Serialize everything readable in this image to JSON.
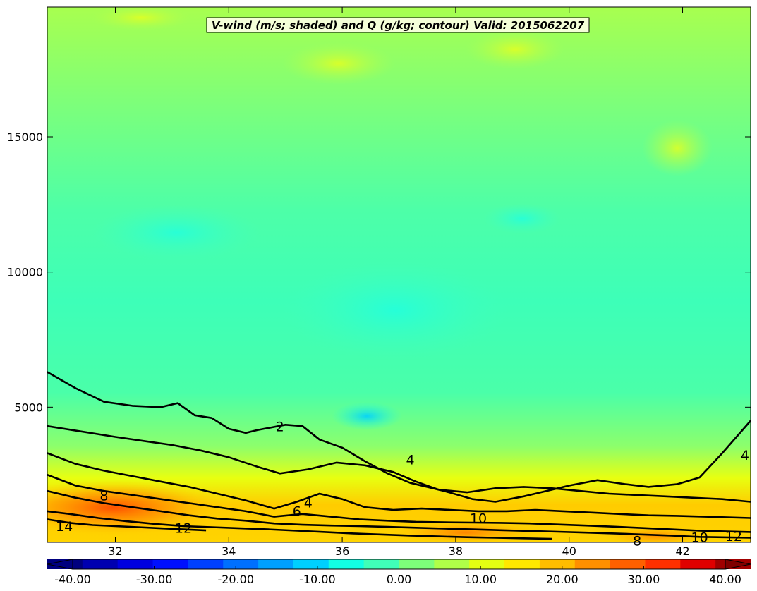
{
  "chart_data": {
    "type": "heatmap",
    "title": "V-wind (m/s; shaded) and Q (g/kg; contour) Valid: 2015062207",
    "x_ticks": [
      32,
      34,
      36,
      38,
      40,
      42
    ],
    "x_tick_labels": [
      "32",
      "34",
      "36",
      "38",
      "40",
      "42"
    ],
    "xlim": [
      30.8,
      43.2
    ],
    "y_ticks": [
      5000,
      10000,
      15000
    ],
    "y_tick_labels": [
      "5000",
      "10000",
      "15000"
    ],
    "ylim": [
      0,
      19800
    ],
    "colorbar": {
      "min": -40.0,
      "max": 40.0,
      "ticks": [
        -40,
        -30,
        -20,
        -10,
        0,
        10,
        20,
        30,
        40
      ],
      "tick_labels": [
        "-40.00",
        "-30.00",
        "-20.00",
        "-10.00",
        "0.00",
        "10.00",
        "20.00",
        "30.00",
        "40.00"
      ],
      "colors": [
        "#00007f",
        "#0000d4",
        "#0040ff",
        "#00a0ff",
        "#12ffe4",
        "#7dff7a",
        "#e4ff12",
        "#ffbd00",
        "#ff3000",
        "#7f0000"
      ],
      "extend": "both"
    },
    "contour_labels": [
      {
        "text": "2",
        "x": 34.9,
        "y": 4250
      },
      {
        "text": "4",
        "x": 37.2,
        "y": 3030
      },
      {
        "text": "4",
        "x": 35.4,
        "y": 1430
      },
      {
        "text": "6",
        "x": 35.2,
        "y": 1120
      },
      {
        "text": "8",
        "x": 31.8,
        "y": 1690
      },
      {
        "text": "10",
        "x": 38.4,
        "y": 860
      },
      {
        "text": "12",
        "x": 33.2,
        "y": 500
      },
      {
        "text": "14",
        "x": 31.1,
        "y": 560
      },
      {
        "text": "8",
        "x": 41.2,
        "y": 30
      },
      {
        "text": "10",
        "x": 42.3,
        "y": 160
      },
      {
        "text": "12",
        "x": 42.9,
        "y": 200
      },
      {
        "text": "4",
        "x": 43.1,
        "y": 3200
      }
    ],
    "contours": [
      {
        "level": 2,
        "points": [
          [
            30.8,
            6300
          ],
          [
            31.3,
            5700
          ],
          [
            31.8,
            5200
          ],
          [
            32.3,
            5050
          ],
          [
            32.8,
            5000
          ],
          [
            33.1,
            5150
          ],
          [
            33.4,
            4700
          ],
          [
            33.7,
            4600
          ],
          [
            34.0,
            4200
          ],
          [
            34.3,
            4050
          ],
          [
            34.5,
            4150
          ],
          [
            35.0,
            4350
          ],
          [
            35.3,
            4300
          ],
          [
            35.6,
            3800
          ],
          [
            36.0,
            3500
          ],
          [
            36.4,
            3000
          ],
          [
            36.8,
            2550
          ],
          [
            37.2,
            2200
          ],
          [
            37.8,
            1900
          ],
          [
            38.3,
            1600
          ],
          [
            38.7,
            1500
          ],
          [
            39.2,
            1700
          ],
          [
            39.6,
            1900
          ],
          [
            40.0,
            2100
          ],
          [
            40.5,
            2300
          ],
          [
            41.0,
            2150
          ],
          [
            41.4,
            2050
          ],
          [
            41.9,
            2150
          ],
          [
            42.3,
            2400
          ],
          [
            42.7,
            3300
          ],
          [
            43.2,
            4500
          ]
        ]
      },
      {
        "level": 4,
        "points": [
          [
            30.8,
            4300
          ],
          [
            31.4,
            4100
          ],
          [
            32.0,
            3900
          ],
          [
            32.5,
            3750
          ],
          [
            33.0,
            3600
          ],
          [
            33.5,
            3400
          ],
          [
            34.0,
            3150
          ],
          [
            34.5,
            2800
          ],
          [
            34.9,
            2550
          ],
          [
            35.4,
            2700
          ],
          [
            35.9,
            2950
          ],
          [
            36.4,
            2850
          ],
          [
            36.9,
            2600
          ],
          [
            37.3,
            2250
          ],
          [
            37.7,
            1950
          ],
          [
            38.2,
            1850
          ],
          [
            38.7,
            2000
          ],
          [
            39.2,
            2050
          ],
          [
            39.7,
            2000
          ],
          [
            40.2,
            1900
          ],
          [
            40.7,
            1800
          ],
          [
            41.2,
            1750
          ],
          [
            41.7,
            1700
          ],
          [
            42.2,
            1650
          ],
          [
            42.7,
            1600
          ],
          [
            43.2,
            1500
          ]
        ]
      },
      {
        "level": 6,
        "points": [
          [
            30.8,
            3300
          ],
          [
            31.3,
            2900
          ],
          [
            31.8,
            2650
          ],
          [
            32.3,
            2450
          ],
          [
            32.8,
            2250
          ],
          [
            33.3,
            2050
          ],
          [
            33.8,
            1800
          ],
          [
            34.3,
            1550
          ],
          [
            34.8,
            1250
          ],
          [
            35.2,
            1500
          ],
          [
            35.6,
            1800
          ],
          [
            36.0,
            1600
          ],
          [
            36.4,
            1300
          ],
          [
            36.9,
            1200
          ],
          [
            37.4,
            1250
          ],
          [
            37.9,
            1200
          ],
          [
            38.4,
            1150
          ],
          [
            38.9,
            1150
          ],
          [
            39.4,
            1200
          ],
          [
            39.9,
            1150
          ],
          [
            40.4,
            1100
          ],
          [
            40.9,
            1050
          ],
          [
            41.4,
            1000
          ],
          [
            41.9,
            980
          ],
          [
            42.4,
            950
          ],
          [
            43.2,
            900
          ]
        ]
      },
      {
        "level": 8,
        "points": [
          [
            30.8,
            2500
          ],
          [
            31.3,
            2100
          ],
          [
            31.8,
            1900
          ],
          [
            32.3,
            1750
          ],
          [
            32.8,
            1600
          ],
          [
            33.3,
            1450
          ],
          [
            33.8,
            1300
          ],
          [
            34.3,
            1150
          ],
          [
            34.8,
            950
          ],
          [
            35.3,
            1050
          ],
          [
            35.8,
            950
          ],
          [
            36.3,
            850
          ],
          [
            36.8,
            800
          ],
          [
            37.3,
            760
          ],
          [
            37.8,
            740
          ],
          [
            38.3,
            730
          ],
          [
            38.8,
            720
          ],
          [
            39.3,
            700
          ],
          [
            39.8,
            660
          ],
          [
            40.3,
            620
          ],
          [
            40.8,
            580
          ],
          [
            41.3,
            530
          ],
          [
            41.8,
            480
          ],
          [
            42.3,
            430
          ],
          [
            43.2,
            380
          ]
        ]
      },
      {
        "level": 10,
        "points": [
          [
            30.8,
            1900
          ],
          [
            31.3,
            1650
          ],
          [
            31.8,
            1450
          ],
          [
            32.3,
            1300
          ],
          [
            32.8,
            1150
          ],
          [
            33.3,
            1000
          ],
          [
            33.8,
            880
          ],
          [
            34.3,
            800
          ],
          [
            34.8,
            700
          ],
          [
            35.3,
            650
          ],
          [
            35.8,
            620
          ],
          [
            36.3,
            600
          ],
          [
            36.8,
            570
          ],
          [
            37.3,
            540
          ],
          [
            37.8,
            510
          ],
          [
            38.3,
            480
          ],
          [
            38.8,
            450
          ],
          [
            39.3,
            420
          ],
          [
            39.8,
            390
          ],
          [
            40.3,
            360
          ],
          [
            40.8,
            330
          ],
          [
            41.3,
            290
          ],
          [
            41.8,
            250
          ],
          [
            42.3,
            200
          ],
          [
            43.2,
            170
          ]
        ]
      },
      {
        "level": 12,
        "points": [
          [
            30.8,
            1150
          ],
          [
            31.2,
            1050
          ],
          [
            31.7,
            900
          ],
          [
            32.2,
            780
          ],
          [
            32.7,
            680
          ],
          [
            33.2,
            600
          ],
          [
            33.7,
            560
          ],
          [
            34.2,
            520
          ],
          [
            34.7,
            480
          ],
          [
            35.2,
            430
          ],
          [
            35.7,
            380
          ],
          [
            36.2,
            330
          ],
          [
            36.7,
            290
          ],
          [
            37.2,
            250
          ],
          [
            37.7,
            220
          ],
          [
            38.2,
            190
          ],
          [
            38.7,
            170
          ],
          [
            39.2,
            150
          ],
          [
            39.7,
            130
          ]
        ]
      },
      {
        "level": 14,
        "points": [
          [
            30.8,
            850
          ],
          [
            31.2,
            720
          ],
          [
            31.6,
            640
          ],
          [
            32.0,
            600
          ],
          [
            32.4,
            560
          ],
          [
            32.8,
            520
          ],
          [
            33.2,
            480
          ],
          [
            33.6,
            440
          ]
        ]
      }
    ]
  }
}
